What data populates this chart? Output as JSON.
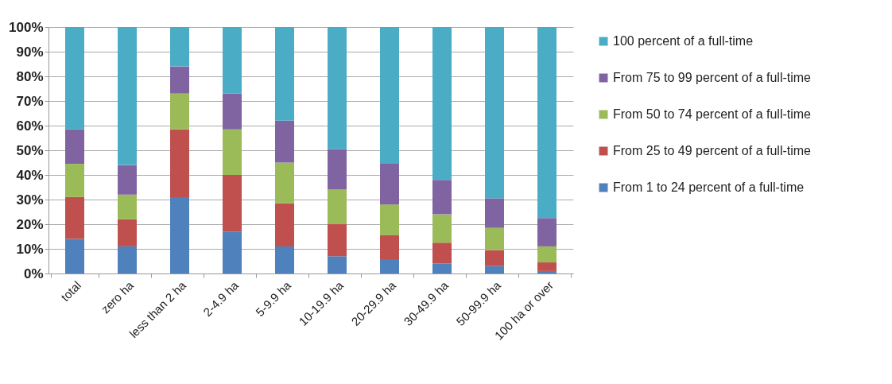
{
  "chart_data": {
    "type": "bar",
    "stacked": true,
    "categories": [
      "total",
      "zero ha",
      "less than 2 ha",
      "2-4.9 ha",
      "5-9.9 ha",
      "10-19.9 ha",
      "20-29.9 ha",
      "30-49.9 ha",
      "50-99.9 ha",
      "100 ha or over"
    ],
    "series": [
      {
        "name": "From 1 to 24 percent of a full-time",
        "color": "#4f81bd",
        "values": [
          14,
          11,
          31,
          17,
          11,
          7,
          5.5,
          4,
          3,
          1
        ]
      },
      {
        "name": "From 25 to 49 percent of a full-time",
        "color": "#c0504d",
        "values": [
          17,
          11,
          27.5,
          23,
          17.5,
          13,
          10,
          8.5,
          6.5,
          3.5
        ]
      },
      {
        "name": "From 50 to 74 percent of a full-time",
        "color": "#9bbb59",
        "values": [
          13.5,
          10,
          14.5,
          18.5,
          16.5,
          14,
          12.5,
          11.5,
          9,
          6.5
        ]
      },
      {
        "name": "From 75 to 99 percent of a full-time",
        "color": "#8064a2",
        "values": [
          14,
          12,
          11,
          14.5,
          17,
          16.5,
          16.5,
          14,
          12,
          11.5
        ]
      },
      {
        "name": "100 percent of a full-time",
        "color": "#4bacc6",
        "values": [
          41.5,
          56,
          16,
          27,
          38,
          49.5,
          55.5,
          62,
          69.5,
          77.5
        ]
      }
    ],
    "ylim": [
      0,
      100
    ],
    "yticks": [
      {
        "value": 0,
        "label": "0%"
      },
      {
        "value": 10,
        "label": "10%"
      },
      {
        "value": 20,
        "label": "20%"
      },
      {
        "value": 30,
        "label": "30%"
      },
      {
        "value": 40,
        "label": "40%"
      },
      {
        "value": 50,
        "label": "50%"
      },
      {
        "value": 60,
        "label": "60%"
      },
      {
        "value": 70,
        "label": "70%"
      },
      {
        "value": 80,
        "label": "80%"
      },
      {
        "value": 90,
        "label": "90%"
      },
      {
        "value": 100,
        "label": "100%"
      }
    ],
    "grid": "y",
    "legend": "right"
  }
}
